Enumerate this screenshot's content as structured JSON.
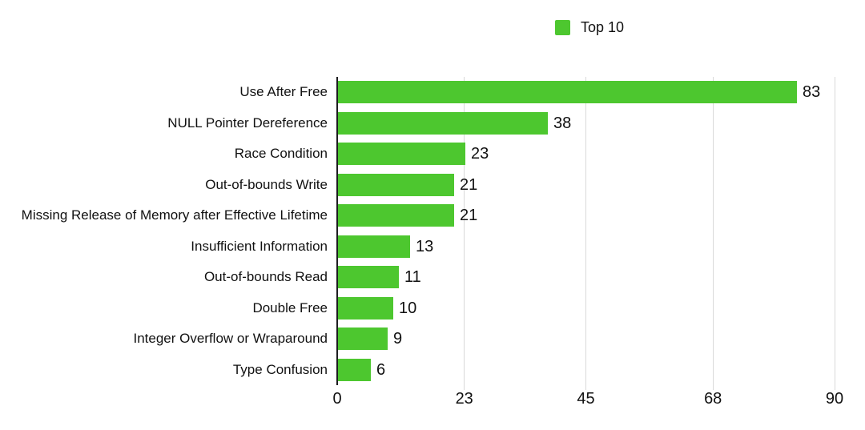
{
  "colors": {
    "bar": "#4DC72F",
    "axis": "#1d1d1f",
    "gridline": "#d9d9d9",
    "text": "#111111"
  },
  "chart_data": {
    "type": "bar",
    "orientation": "horizontal",
    "title": "",
    "legend": [
      {
        "label": "Top 10",
        "color": "#4DC72F"
      }
    ],
    "legend_position": "top-center",
    "categories": [
      "Use After Free",
      "NULL Pointer Dereference",
      "Race Condition",
      "Out-of-bounds Write",
      "Missing Release of Memory after Effective Lifetime",
      "Insufficient Information",
      "Out-of-bounds Read",
      "Double Free",
      "Integer Overflow or Wraparound",
      "Type Confusion"
    ],
    "values": [
      83,
      38,
      23,
      21,
      21,
      13,
      11,
      10,
      9,
      6
    ],
    "xlabel": "",
    "ylabel": "",
    "xlim": [
      0,
      90
    ],
    "xticks": [
      0,
      23,
      45,
      68,
      90
    ],
    "grid": true
  }
}
